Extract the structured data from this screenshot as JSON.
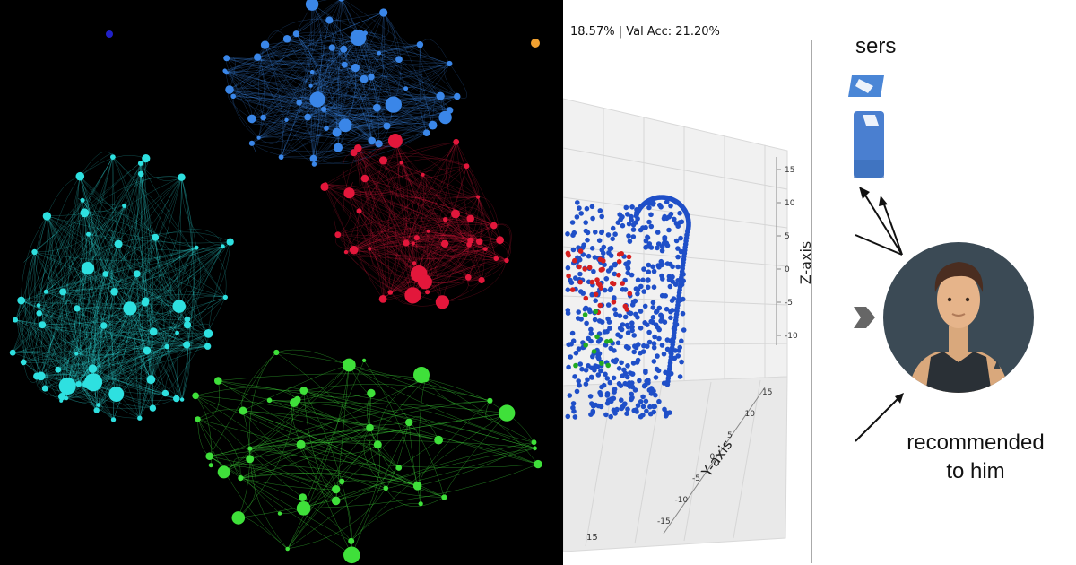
{
  "network_panel": {
    "clusters": [
      {
        "color": "#3a86e8",
        "icon": "blue-node-cluster"
      },
      {
        "color": "#e3173b",
        "icon": "red-node-cluster"
      },
      {
        "color": "#2ee0e0",
        "icon": "cyan-node-cluster"
      },
      {
        "color": "#3fe03a",
        "icon": "green-node-cluster"
      }
    ],
    "background": "#000000"
  },
  "plot_panel": {
    "title": "18.57% | Val Acc: 21.20%",
    "point_colors": [
      "#1f4fc8",
      "#d62020",
      "#22aa22"
    ],
    "chart_data": {
      "type": "scatter",
      "projection": "3d",
      "zlabel": "Z-axis",
      "ylabel": "Y-axis",
      "z_ticks": [
        "15",
        "10",
        "5",
        "0",
        "-5",
        "-10"
      ],
      "y_ticks": [
        "15",
        "10",
        "5",
        "0",
        "-5",
        "-10",
        "-15"
      ],
      "x_ticks_visible": [
        "15"
      ],
      "grid": true
    }
  },
  "recommendation_panel": {
    "heading_partial": "sers",
    "caption_line1": "recommended",
    "caption_line2": "to him",
    "icons": [
      "document-icon",
      "document-icon",
      "user-avatar-icon",
      "arrow-icon"
    ],
    "avatar_bg": "#3b4a55"
  }
}
